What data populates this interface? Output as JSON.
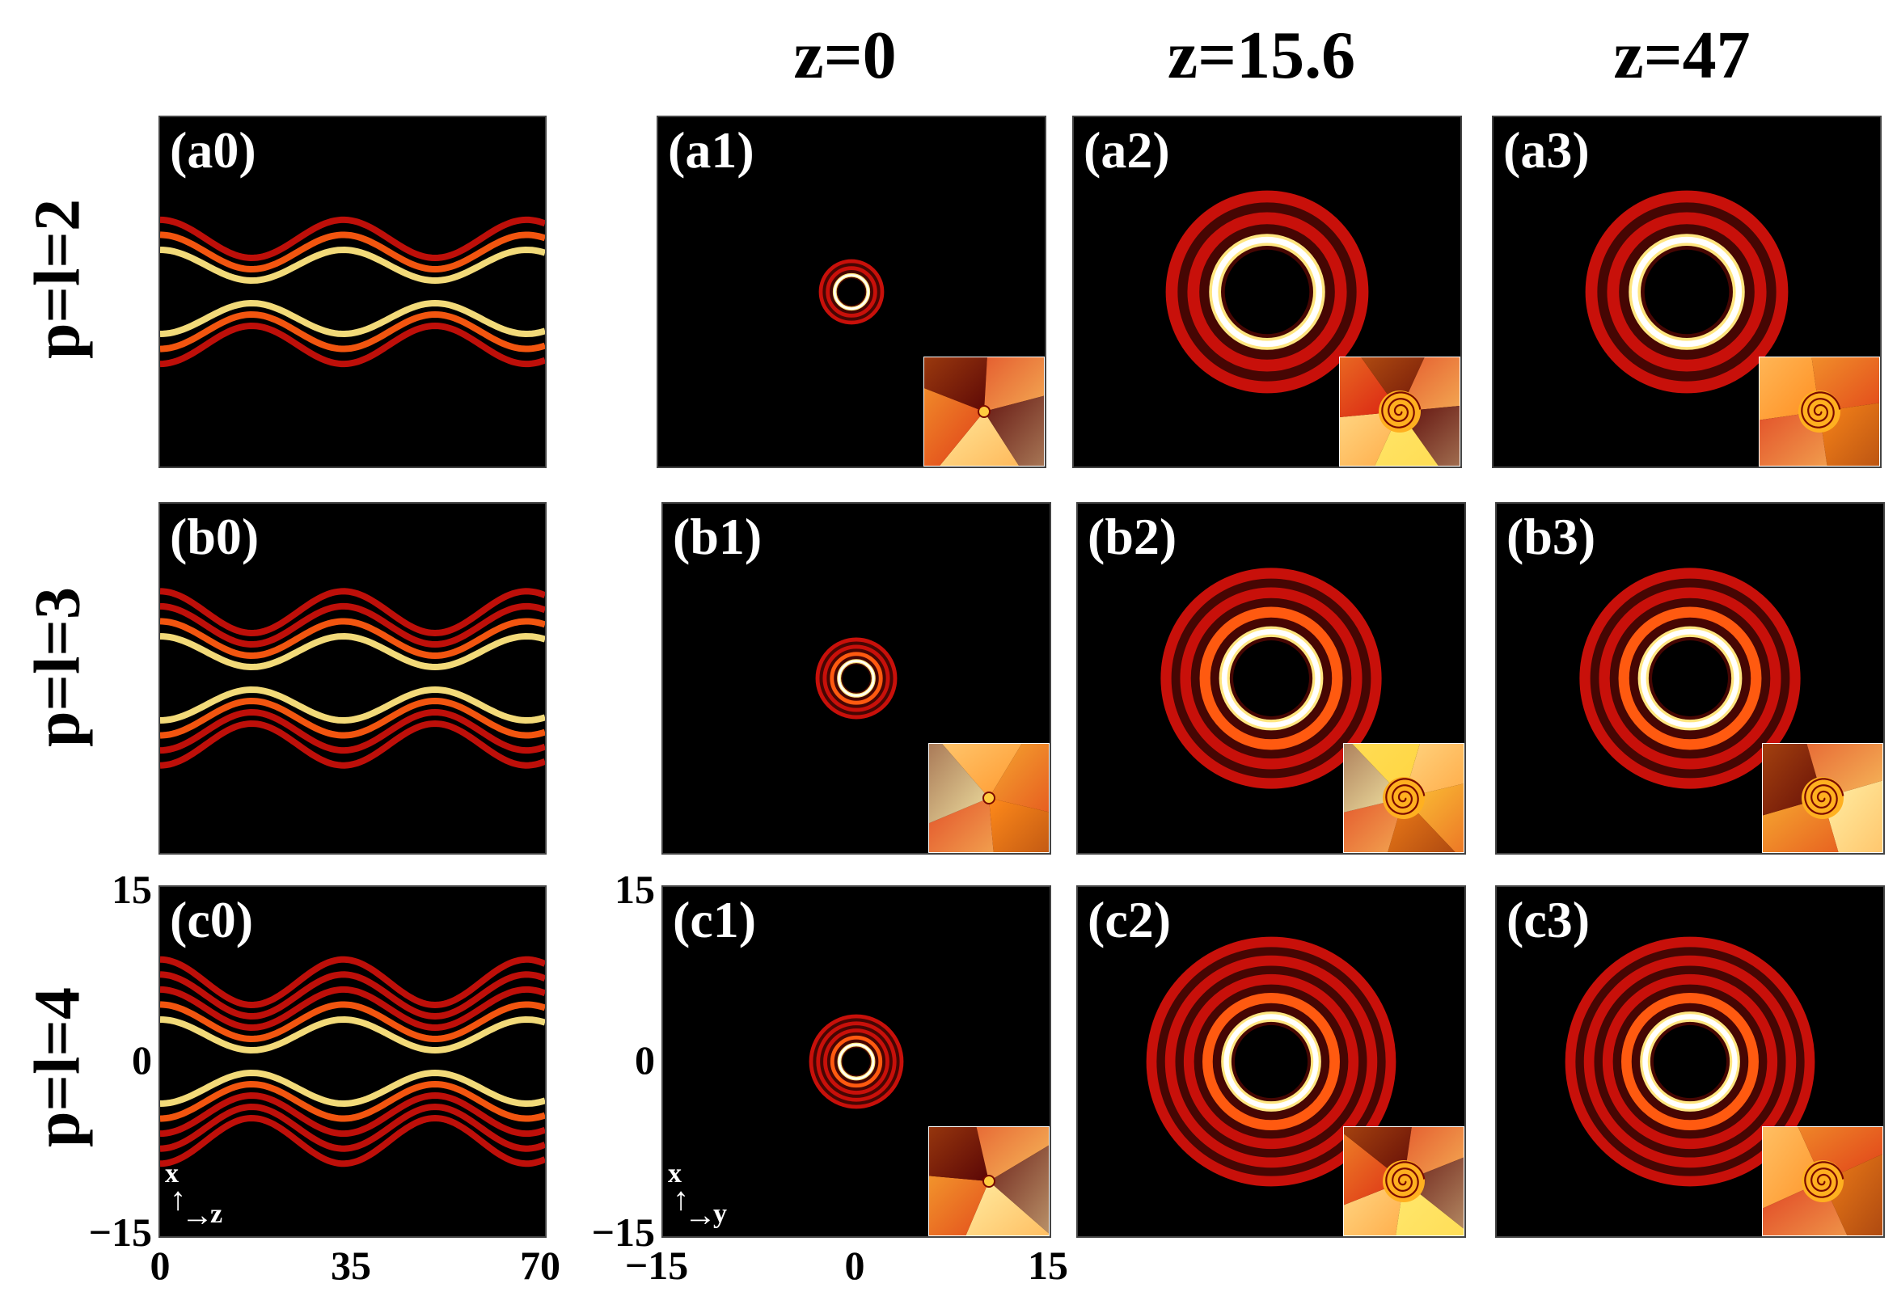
{
  "columns": {
    "z0": "z=0",
    "z1": "z=15.6",
    "z2": "z=47"
  },
  "rows": {
    "a": "p=l=2",
    "b": "p=l=3",
    "c": "p=l=4"
  },
  "panels": {
    "a0": "(a0)",
    "a1": "(a1)",
    "a2": "(a2)",
    "a3": "(a3)",
    "b0": "(b0)",
    "b1": "(b1)",
    "b2": "(b2)",
    "b3": "(b3)",
    "c0": "(c0)",
    "c1": "(c1)",
    "c2": "(c2)",
    "c3": "(c3)"
  },
  "axes": {
    "xz": {
      "x_ticks": [
        "0",
        "35",
        "70"
      ],
      "y_ticks": [
        "15",
        "0",
        "−15"
      ],
      "v_label": "x",
      "h_label": "z"
    },
    "xy": {
      "x_ticks": [
        "−15",
        "0",
        "15"
      ],
      "y_ticks": [
        "15",
        "0",
        "−15"
      ],
      "v_label": "x",
      "h_label": "y"
    }
  },
  "colors": {
    "background": "#000000",
    "ring_outer": "#c8100a",
    "ring_mid": "#ff5a10",
    "ring_inner": "#ffe680",
    "core": "#ffffff"
  }
}
